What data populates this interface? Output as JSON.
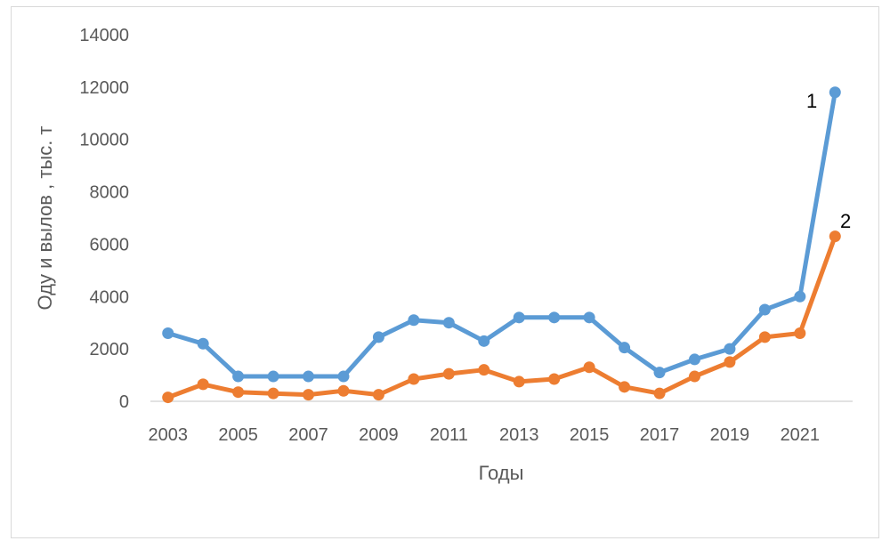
{
  "chart_data": {
    "type": "line",
    "xlabel": "Годы",
    "ylabel": "Оду и вылов , тыс. т",
    "ylim": [
      0,
      14000
    ],
    "yticks": [
      "0",
      "2000",
      "4000",
      "6000",
      "8000",
      "10000",
      "12000",
      "14000"
    ],
    "x": [
      2003,
      2004,
      2005,
      2006,
      2007,
      2008,
      2009,
      2010,
      2011,
      2012,
      2013,
      2014,
      2015,
      2016,
      2017,
      2018,
      2019,
      2020,
      2021,
      2022
    ],
    "xtick_labels": [
      "2003",
      "2005",
      "2007",
      "2009",
      "2011",
      "2013",
      "2015",
      "2017",
      "2019",
      "2021"
    ],
    "grid": false,
    "legend": "none",
    "series": [
      {
        "label": "1",
        "color": "#5b9bd5",
        "values": [
          2600,
          2200,
          950,
          950,
          950,
          950,
          2450,
          3100,
          3000,
          2300,
          3200,
          3200,
          3200,
          2050,
          1100,
          1600,
          2000,
          3500,
          4000,
          11800
        ]
      },
      {
        "label": "2",
        "color": "#ed7d31",
        "values": [
          150,
          650,
          350,
          300,
          250,
          400,
          250,
          850,
          1050,
          1200,
          750,
          850,
          1300,
          550,
          300,
          950,
          1500,
          2450,
          2600,
          6300
        ]
      }
    ]
  }
}
